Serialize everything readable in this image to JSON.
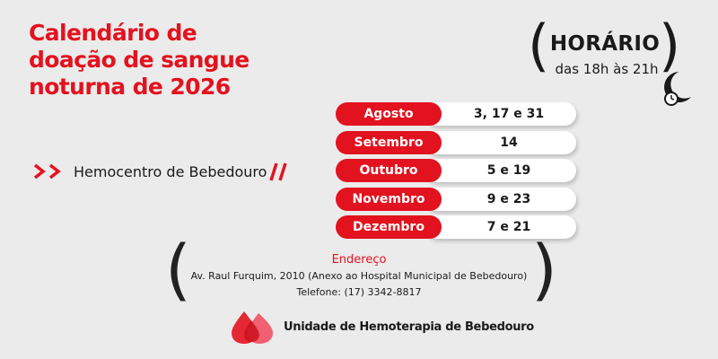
{
  "title": {
    "line1": "Calendário de",
    "line2": "doação de sangue",
    "line3": "noturna de 2026"
  },
  "schedule": {
    "label": "HORÁRIO",
    "time": "das 18h às 21h"
  },
  "location": {
    "name": "Hemocentro de Bebedouro"
  },
  "calendar": [
    {
      "month": "Agosto",
      "days": "3, 17 e 31"
    },
    {
      "month": "Setembro",
      "days": "14"
    },
    {
      "month": "Outubro",
      "days": "5 e 19"
    },
    {
      "month": "Novembro",
      "days": "9 e 23"
    },
    {
      "month": "Dezembro",
      "days": "7 e 21"
    }
  ],
  "address": {
    "heading": "Endereço",
    "line": "Av. Raul Furquim, 2010 (Anexo ao Hospital Municipal de Bebedouro)",
    "phone": "Telefone: (17) 3342-8817"
  },
  "footer": {
    "unit_name": "Unidade de Hemoterapia de Bebedouro"
  },
  "colors": {
    "accent": "#e3121f",
    "background": "#ebebeb",
    "text": "#1a1a1a"
  },
  "icons": {
    "moon": "moon-clock-icon",
    "chevrons": "double-chevron-right-icon",
    "slashes": "double-slash-icon",
    "logo": "blood-drop-logo"
  }
}
